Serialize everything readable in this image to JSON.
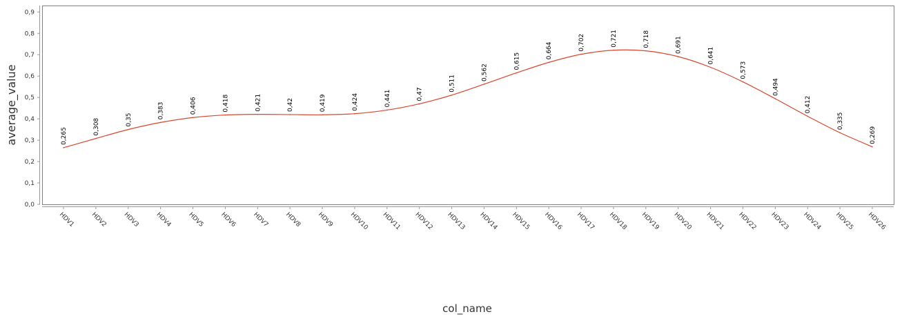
{
  "chart_data": {
    "type": "line",
    "xlabel": "col_name",
    "ylabel": "average_value",
    "categories": [
      "HDV1",
      "HDV2",
      "HDV3",
      "HDV4",
      "HDV5",
      "HDV6",
      "HDV7",
      "HDV8",
      "HDV9",
      "HDV10",
      "HDV11",
      "HDV12",
      "HDV13",
      "HDV14",
      "HDV15",
      "HDV16",
      "HDV17",
      "HDV18",
      "HDV19",
      "HDV20",
      "HDV21",
      "HDV22",
      "HDV23",
      "HDV24",
      "HDV25",
      "HDV26"
    ],
    "values": [
      0.265,
      0.308,
      0.35,
      0.383,
      0.406,
      0.418,
      0.421,
      0.42,
      0.419,
      0.424,
      0.441,
      0.47,
      0.511,
      0.562,
      0.615,
      0.664,
      0.702,
      0.721,
      0.718,
      0.691,
      0.641,
      0.573,
      0.494,
      0.412,
      0.335,
      0.269
    ],
    "value_labels": [
      "0,265",
      "0,308",
      "0,35",
      "0,383",
      "0,406",
      "0,418",
      "0,421",
      "0,42",
      "0,419",
      "0,424",
      "0,441",
      "0,47",
      "0,511",
      "0,562",
      "0,615",
      "0,664",
      "0,702",
      "0,721",
      "0,718",
      "0,691",
      "0,641",
      "0,573",
      "0,494",
      "0,412",
      "0,335",
      "0,269"
    ],
    "yticks": [
      0,
      0.1,
      0.2,
      0.3,
      0.4,
      0.5,
      0.6,
      0.7,
      0.8,
      0.9
    ],
    "ytick_labels": [
      "0,0",
      "0,1",
      "0,2",
      "0,3",
      "0,4",
      "0,5",
      "0,6",
      "0,7",
      "0,8",
      "0,9"
    ],
    "ylim": [
      0,
      0.93
    ],
    "grid": false,
    "legend": "none",
    "line_color": "#d9462b",
    "axis_color": "#999999",
    "frame_color": "#808080"
  }
}
